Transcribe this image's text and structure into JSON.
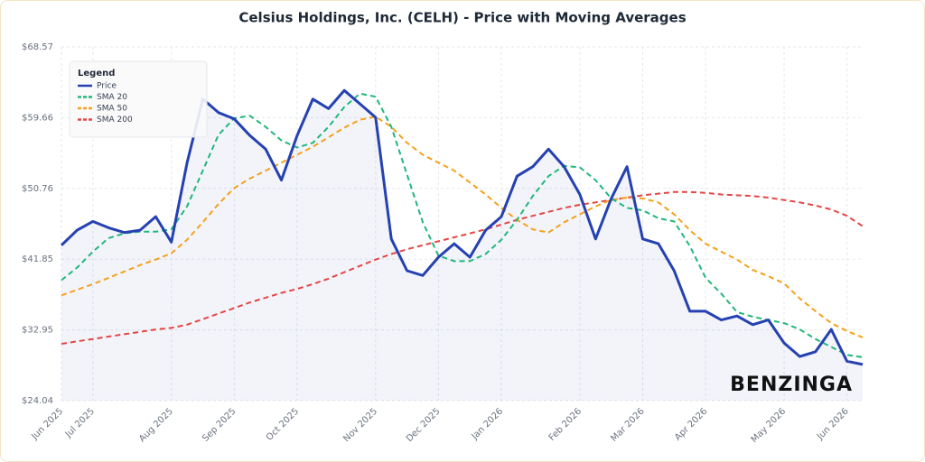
{
  "chart_data": {
    "type": "line",
    "title": "Celsius Holdings, Inc. (CELH) - Price with Moving Averages",
    "legend_title": "Legend",
    "legend": "top-left",
    "grid": true,
    "watermark": "BENZINGA",
    "categories": [
      "Jun 2025",
      null,
      "Jul 2025",
      null,
      null,
      null,
      null,
      "Aug 2025",
      null,
      null,
      null,
      "Sep 2025",
      null,
      null,
      null,
      "Oct 2025",
      null,
      null,
      null,
      null,
      "Nov 2025",
      null,
      null,
      null,
      "Dec 2025",
      null,
      null,
      null,
      "Jan 2026",
      null,
      null,
      null,
      null,
      "Feb 2026",
      null,
      null,
      null,
      "Mar 2026",
      null,
      null,
      null,
      "Apr 2026",
      null,
      null,
      null,
      null,
      "May 2026",
      null,
      null,
      null,
      "Jun 2026",
      null
    ],
    "series": [
      {
        "name": "Price",
        "color": "#2541b2",
        "values": [
          43.6,
          45.5,
          46.6,
          45.8,
          45.2,
          45.5,
          47.2,
          44.0,
          54.0,
          62.0,
          60.3,
          59.5,
          57.4,
          55.7,
          51.8,
          57.4,
          62.0,
          60.8,
          63.1,
          61.4,
          59.7,
          44.4,
          40.4,
          39.8,
          42.1,
          43.8,
          42.1,
          45.5,
          47.2,
          52.3,
          53.5,
          55.7,
          53.5,
          50.0,
          44.4,
          49.5,
          53.5,
          44.4,
          43.8,
          40.4,
          35.3,
          35.3,
          34.2,
          34.7,
          33.6,
          34.2,
          31.3,
          29.6,
          30.2,
          33.0,
          29.0,
          28.6
        ]
      },
      {
        "name": "SMA 20",
        "color": "#20b77a",
        "values": [
          39.2,
          40.8,
          42.8,
          44.5,
          45.1,
          45.3,
          45.3,
          45.6,
          48.5,
          53.0,
          57.5,
          59.6,
          59.9,
          58.5,
          56.8,
          55.9,
          56.5,
          58.5,
          61.0,
          62.7,
          62.3,
          58.5,
          52.5,
          46.5,
          42.3,
          41.6,
          41.6,
          42.5,
          44.3,
          46.8,
          49.8,
          52.3,
          53.6,
          53.4,
          51.8,
          49.5,
          48.3,
          48.0,
          47.0,
          46.6,
          43.5,
          39.5,
          37.5,
          35.2,
          34.6,
          34.2,
          33.8,
          33.0,
          31.8,
          30.8,
          29.8,
          29.5
        ]
      },
      {
        "name": "SMA 50",
        "color": "#f5a11c",
        "values": [
          37.3,
          38.0,
          38.7,
          39.5,
          40.3,
          41.1,
          41.8,
          42.6,
          44.3,
          46.5,
          48.8,
          50.8,
          52.0,
          53.0,
          54.0,
          55.0,
          56.0,
          57.2,
          58.4,
          59.4,
          59.8,
          58.5,
          56.5,
          55.0,
          54.0,
          53.0,
          51.5,
          50.0,
          48.3,
          46.8,
          45.6,
          45.2,
          46.5,
          47.5,
          48.5,
          49.3,
          49.6,
          49.5,
          49.0,
          47.5,
          45.5,
          43.8,
          42.8,
          41.8,
          40.5,
          39.7,
          38.8,
          36.9,
          35.3,
          33.8,
          32.8,
          32.0
        ]
      },
      {
        "name": "SMA 200",
        "color": "#e54545",
        "values": [
          31.2,
          31.5,
          31.8,
          32.1,
          32.4,
          32.7,
          33.0,
          33.2,
          33.6,
          34.3,
          35.0,
          35.7,
          36.4,
          37.0,
          37.6,
          38.1,
          38.7,
          39.4,
          40.2,
          41.0,
          41.8,
          42.5,
          43.1,
          43.6,
          44.1,
          44.6,
          45.1,
          45.6,
          46.2,
          46.8,
          47.3,
          47.8,
          48.3,
          48.7,
          49.0,
          49.3,
          49.6,
          49.9,
          50.1,
          50.3,
          50.3,
          50.2,
          50.0,
          49.9,
          49.8,
          49.6,
          49.3,
          49.0,
          48.6,
          48.1,
          47.3,
          46.0
        ]
      }
    ],
    "ylim": [
      24.04,
      68.57
    ],
    "yticks": [
      {
        "value": 24.04,
        "label": "$24.04"
      },
      {
        "value": 32.95,
        "label": "$32.95"
      },
      {
        "value": 41.85,
        "label": "$41.85"
      },
      {
        "value": 50.76,
        "label": "$50.76"
      },
      {
        "value": 59.66,
        "label": "$59.66"
      },
      {
        "value": 68.57,
        "label": "$68.57"
      }
    ]
  }
}
